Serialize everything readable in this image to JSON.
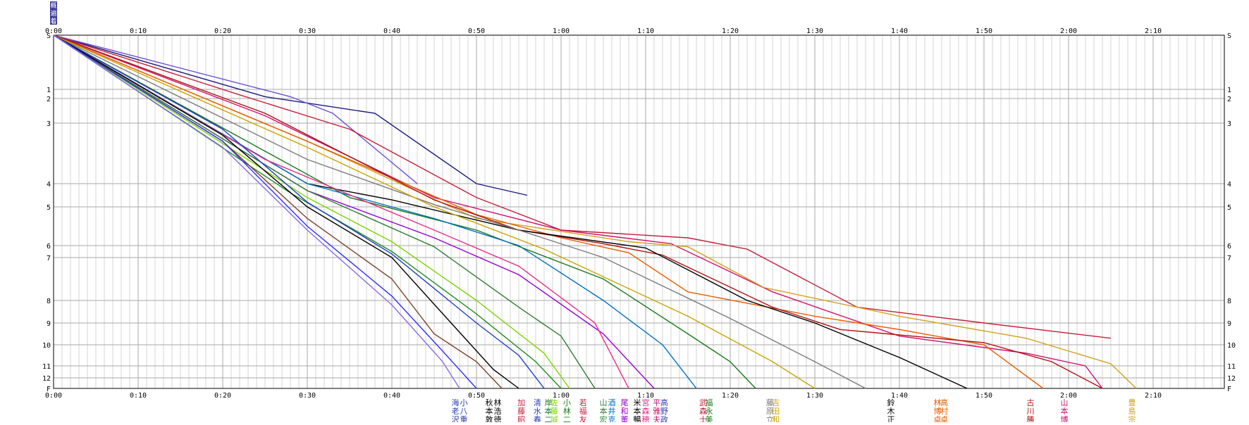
{
  "chart_data": {
    "type": "line",
    "title": "",
    "xlabel": "",
    "ylabel": "",
    "x_unit": "minutes",
    "xlim": [
      0,
      138
    ],
    "x_ticks": [
      "0:00",
      "0:10",
      "0:20",
      "0:30",
      "0:40",
      "0:50",
      "1:00",
      "1:10",
      "1:20",
      "1:30",
      "1:40",
      "1:50",
      "2:00",
      "2:10"
    ],
    "y_ticks": [
      "S",
      "1",
      "2",
      "3",
      "4",
      "5",
      "6",
      "7",
      "8",
      "9",
      "10",
      "11",
      "12",
      "F"
    ],
    "y_categories": [
      "S",
      "1",
      "2",
      "3",
      "4",
      "5",
      "6",
      "7",
      "8",
      "9",
      "10",
      "11",
      "12",
      "F"
    ],
    "grid": true,
    "series": [
      {
        "color": "#1a1a80",
        "values": [
          [
            0,
            0
          ],
          [
            25,
            1.8
          ],
          [
            38,
            2.6
          ],
          [
            50,
            4.0
          ],
          [
            56,
            4.5
          ]
        ]
      },
      {
        "color": "#6a4fd8",
        "values": [
          [
            0,
            0
          ],
          [
            28,
            1.8
          ],
          [
            33,
            2.6
          ],
          [
            43,
            4.0
          ]
        ]
      },
      {
        "color": "#c41e3a",
        "values": [
          [
            0,
            0
          ],
          [
            22,
            1.6
          ],
          [
            35,
            3.1
          ],
          [
            50,
            4.6
          ],
          [
            60,
            5.6
          ],
          [
            75,
            5.8
          ],
          [
            82,
            6.3
          ],
          [
            95,
            8.3
          ],
          [
            110,
            9.0
          ],
          [
            125,
            9.7
          ]
        ]
      },
      {
        "color": "#d01070",
        "values": [
          [
            0,
            0
          ],
          [
            25,
            2.7
          ],
          [
            45,
            4.6
          ],
          [
            60,
            5.6
          ],
          [
            73,
            5.95
          ],
          [
            85,
            7.8
          ],
          [
            100,
            9.6
          ],
          [
            115,
            10.4
          ],
          [
            122,
            11.0
          ],
          [
            124,
            12.0
          ]
        ]
      },
      {
        "color": "#d4a017",
        "values": [
          [
            0,
            0
          ],
          [
            30,
            3.3
          ],
          [
            50,
            5.3
          ],
          [
            68,
            5.9
          ],
          [
            75,
            6.1
          ],
          [
            84,
            7.7
          ],
          [
            100,
            8.7
          ],
          [
            115,
            9.7
          ],
          [
            125,
            10.9
          ],
          [
            128,
            12.0
          ]
        ]
      },
      {
        "color": "#e65c00",
        "values": [
          [
            0,
            0
          ],
          [
            30,
            3.3
          ],
          [
            50,
            5.2
          ],
          [
            60,
            5.8
          ],
          [
            68,
            6.6
          ],
          [
            75,
            7.8
          ],
          [
            90,
            8.7
          ],
          [
            100,
            9.3
          ],
          [
            110,
            10.0
          ],
          [
            117,
            12.0
          ]
        ]
      },
      {
        "color": "#b01010",
        "values": [
          [
            0,
            0
          ],
          [
            25,
            2.6
          ],
          [
            45,
            4.7
          ],
          [
            55,
            5.6
          ],
          [
            65,
            5.95
          ],
          [
            72,
            6.8
          ],
          [
            85,
            8.3
          ],
          [
            93,
            9.3
          ],
          [
            110,
            9.9
          ],
          [
            118,
            10.8
          ],
          [
            124,
            12.0
          ]
        ]
      },
      {
        "color": "#000000",
        "values": [
          [
            0,
            0
          ],
          [
            30,
            4.0
          ],
          [
            40,
            4.7
          ],
          [
            55,
            5.6
          ],
          [
            70,
            6.2
          ],
          [
            82,
            8.0
          ],
          [
            90,
            9.0
          ],
          [
            100,
            10.6
          ],
          [
            108,
            12.0
          ]
        ]
      },
      {
        "color": "#7a7a7a",
        "values": [
          [
            0,
            0
          ],
          [
            30,
            3.6
          ],
          [
            45,
            4.9
          ],
          [
            55,
            5.6
          ],
          [
            65,
            7.0
          ],
          [
            80,
            8.8
          ],
          [
            90,
            10.8
          ],
          [
            96,
            12.0
          ]
        ]
      },
      {
        "color": "#c9a400",
        "values": [
          [
            0,
            0
          ],
          [
            30,
            3.4
          ],
          [
            45,
            5.0
          ],
          [
            58,
            6.3
          ],
          [
            75,
            8.7
          ],
          [
            85,
            10.8
          ],
          [
            90,
            12.0
          ]
        ]
      },
      {
        "color": "#1a7a1a",
        "values": [
          [
            0,
            0
          ],
          [
            35,
            4.6
          ],
          [
            50,
            5.6
          ],
          [
            65,
            7.5
          ],
          [
            75,
            9.5
          ],
          [
            80,
            10.8
          ],
          [
            83,
            12.0
          ]
        ]
      },
      {
        "color": "#0070c0",
        "values": [
          [
            0,
            0
          ],
          [
            30,
            4.0
          ],
          [
            45,
            5.3
          ],
          [
            55,
            6.0
          ],
          [
            65,
            8.0
          ],
          [
            72,
            10.0
          ],
          [
            76,
            12.0
          ]
        ]
      },
      {
        "color": "#9400d3",
        "values": [
          [
            0,
            0
          ],
          [
            30,
            4.3
          ],
          [
            45,
            5.8
          ],
          [
            55,
            7.4
          ],
          [
            65,
            9.5
          ],
          [
            71,
            12.0
          ]
        ]
      },
      {
        "color": "#e62e8a",
        "values": [
          [
            0,
            0
          ],
          [
            25,
            3.6
          ],
          [
            45,
            5.6
          ],
          [
            55,
            7.2
          ],
          [
            64,
            9.0
          ],
          [
            68,
            12.0
          ]
        ]
      },
      {
        "color": "#2e7d32",
        "values": [
          [
            0,
            0
          ],
          [
            30,
            4.3
          ],
          [
            45,
            6.1
          ],
          [
            55,
            8.3
          ],
          [
            60,
            9.6
          ],
          [
            64,
            12.0
          ]
        ]
      },
      {
        "color": "#7cd400",
        "values": [
          [
            0,
            0
          ],
          [
            30,
            4.6
          ],
          [
            40,
            5.9
          ],
          [
            50,
            8.0
          ],
          [
            58,
            10.4
          ],
          [
            61,
            12.0
          ]
        ]
      },
      {
        "color": "#228b22",
        "values": [
          [
            0,
            0
          ],
          [
            28,
            4.4
          ],
          [
            40,
            6.5
          ],
          [
            50,
            8.6
          ],
          [
            57,
            10.8
          ],
          [
            60,
            12.0
          ]
        ]
      },
      {
        "color": "#2040c0",
        "values": [
          [
            0,
            0
          ],
          [
            20,
            3.1
          ],
          [
            30,
            4.8
          ],
          [
            40,
            6.7
          ],
          [
            50,
            9.0
          ],
          [
            55,
            10.5
          ],
          [
            58,
            12.0
          ]
        ]
      },
      {
        "color": "#000000",
        "values": [
          [
            0,
            0
          ],
          [
            20,
            3.2
          ],
          [
            30,
            5.0
          ],
          [
            40,
            7.0
          ],
          [
            47,
            9.0
          ],
          [
            52,
            11.3
          ],
          [
            55,
            12.0
          ]
        ]
      },
      {
        "color": "#7b3f2a",
        "values": [
          [
            0,
            0
          ],
          [
            20,
            3.3
          ],
          [
            30,
            5.3
          ],
          [
            40,
            7.5
          ],
          [
            45,
            9.5
          ],
          [
            50,
            10.8
          ],
          [
            53,
            12.0
          ]
        ]
      },
      {
        "color": "#3030ff",
        "values": [
          [
            0,
            0
          ],
          [
            20,
            3.3
          ],
          [
            30,
            5.5
          ],
          [
            40,
            7.9
          ],
          [
            46,
            10.3
          ],
          [
            50,
            12.0
          ]
        ]
      },
      {
        "color": "#8a6be0",
        "values": [
          [
            0,
            0
          ],
          [
            20,
            3.4
          ],
          [
            30,
            5.6
          ],
          [
            40,
            8.2
          ],
          [
            46,
            10.8
          ],
          [
            48,
            12.0
          ]
        ]
      }
    ],
    "labels": [
      {
        "text": [
          "海",
          "老",
          "沢"
        ],
        "color": "#2a3fb0",
        "minute": 47.5
      },
      {
        "text": [
          "小",
          "八",
          "重"
        ],
        "color": "#2a3fb0",
        "minute": 48.5
      },
      {
        "text": [
          "秋",
          "本",
          "敦"
        ],
        "color": "#000000",
        "minute": 51.5
      },
      {
        "text": [
          "林",
          "浩",
          "徳"
        ],
        "color": "#000000",
        "minute": 52.5
      },
      {
        "text": [
          "加",
          "藤",
          "昭"
        ],
        "color": "#c41e3a",
        "minute": 55.3
      },
      {
        "text": [
          "清",
          "水",
          "春"
        ],
        "color": "#2a3fb0",
        "minute": 57.2
      },
      {
        "text": [
          "岸",
          "本",
          "二"
        ],
        "color": "#1a7a1a",
        "minute": 58.5
      },
      {
        "text": [
          "佐",
          "藤",
          "誠"
        ],
        "color": "#7cd400",
        "minute": 59.2
      },
      {
        "text": [
          "小",
          "林",
          "二"
        ],
        "color": "#1a7a1a",
        "minute": 60.7
      },
      {
        "text": [
          "若",
          "福",
          "友"
        ],
        "color": "#c41e3a",
        "minute": 62.6
      },
      {
        "text": [
          "山",
          "本",
          "宏"
        ],
        "color": "#2e7d32",
        "minute": 65.0
      },
      {
        "text": [
          "酒",
          "井",
          "克"
        ],
        "color": "#0070c0",
        "minute": 66.0
      },
      {
        "text": [
          "尾",
          "和",
          "董"
        ],
        "color": "#9400d3",
        "minute": 67.5
      },
      {
        "text": [
          "米",
          "本",
          "暢"
        ],
        "color": "#000000",
        "minute": 69.0
      },
      {
        "text": [
          "宮",
          "森",
          "穂"
        ],
        "color": "#e62e8a",
        "minute": 70.0
      },
      {
        "text": [
          "平",
          "雅",
          "夫"
        ],
        "color": "#d01070",
        "minute": 71.3
      },
      {
        "text": [
          "高",
          "野",
          "政"
        ],
        "color": "#2a3fb0",
        "minute": 72.2
      },
      {
        "text": [
          "武",
          "森",
          "士"
        ],
        "color": "#c41e3a",
        "minute": 76.8
      },
      {
        "text": [
          "福",
          "永",
          "美"
        ],
        "color": "#1a7a1a",
        "minute": 77.5
      },
      {
        "text": [
          "藤",
          "原",
          "立"
        ],
        "color": "#7a7a7a",
        "minute": 84.7
      },
      {
        "text": [
          "吉",
          "田",
          "和"
        ],
        "color": "#c9a400",
        "minute": 85.4
      },
      {
        "text": [
          "鈴",
          "木",
          "正"
        ],
        "color": "#000000",
        "minute": 99.0
      },
      {
        "text": [
          "林",
          "博",
          "卓"
        ],
        "color": "#e65c00",
        "minute": 104.5
      },
      {
        "text": [
          "高",
          "村",
          "卓"
        ],
        "color": "#e65c00",
        "minute": 105.3
      },
      {
        "text": [
          "古",
          "川",
          "勝"
        ],
        "color": "#b01010",
        "minute": 115.5
      },
      {
        "text": [
          "山",
          "本",
          "博"
        ],
        "color": "#d01070",
        "minute": 119.5
      },
      {
        "text": [
          "豊",
          "島",
          "宗"
        ],
        "color": "#c9a400",
        "minute": 127.5
      }
    ],
    "top_marker": [
      "概",
      "遍",
      "着"
    ]
  }
}
